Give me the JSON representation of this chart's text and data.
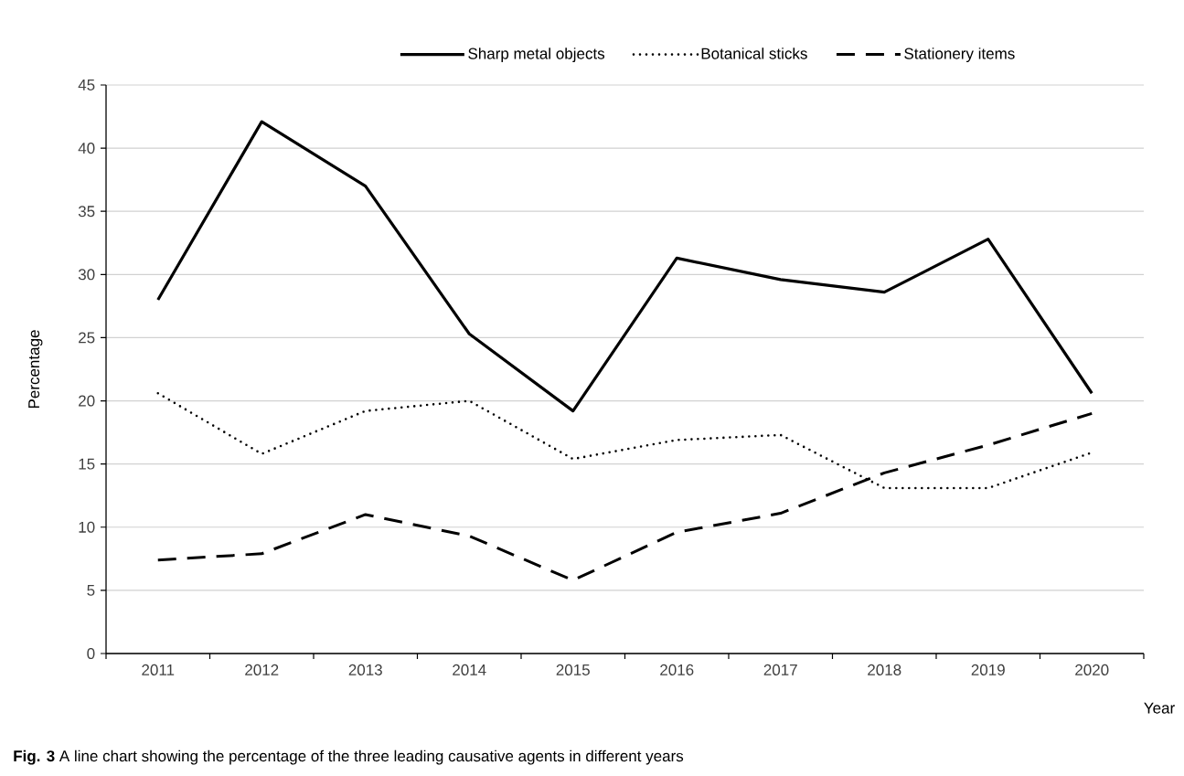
{
  "chart_data": {
    "type": "line",
    "xlabel": "Year",
    "ylabel": "Percentage",
    "categories": [
      "2011",
      "2012",
      "2013",
      "2014",
      "2015",
      "2016",
      "2017",
      "2018",
      "2019",
      "2020"
    ],
    "series": [
      {
        "name": "Sharp metal objects",
        "color": "#000000",
        "line_style": "solid",
        "values": [
          28,
          42.1,
          37,
          25.3,
          19.2,
          31.3,
          29.6,
          28.6,
          32.8,
          20.6
        ]
      },
      {
        "name": "Botanical sticks",
        "color": "#000000",
        "line_style": "dotted",
        "values": [
          20.6,
          15.8,
          19.2,
          20,
          15.4,
          16.9,
          17.3,
          13.1,
          13.1,
          15.9
        ]
      },
      {
        "name": "Stationery items",
        "color": "#000000",
        "line_style": "dashed",
        "values": [
          7.4,
          7.9,
          11,
          9.3,
          5.8,
          9.6,
          11.1,
          14.3,
          16.5,
          19
        ]
      }
    ],
    "ylim": [
      0,
      45
    ],
    "yticks": [
      0,
      5,
      10,
      15,
      20,
      25,
      30,
      35,
      40,
      45
    ],
    "grid": "y",
    "legend": "top",
    "annotations": [
      "**Fig. 3**  A line chart showing the percentage of the three leading causative agents in different years"
    ]
  }
}
